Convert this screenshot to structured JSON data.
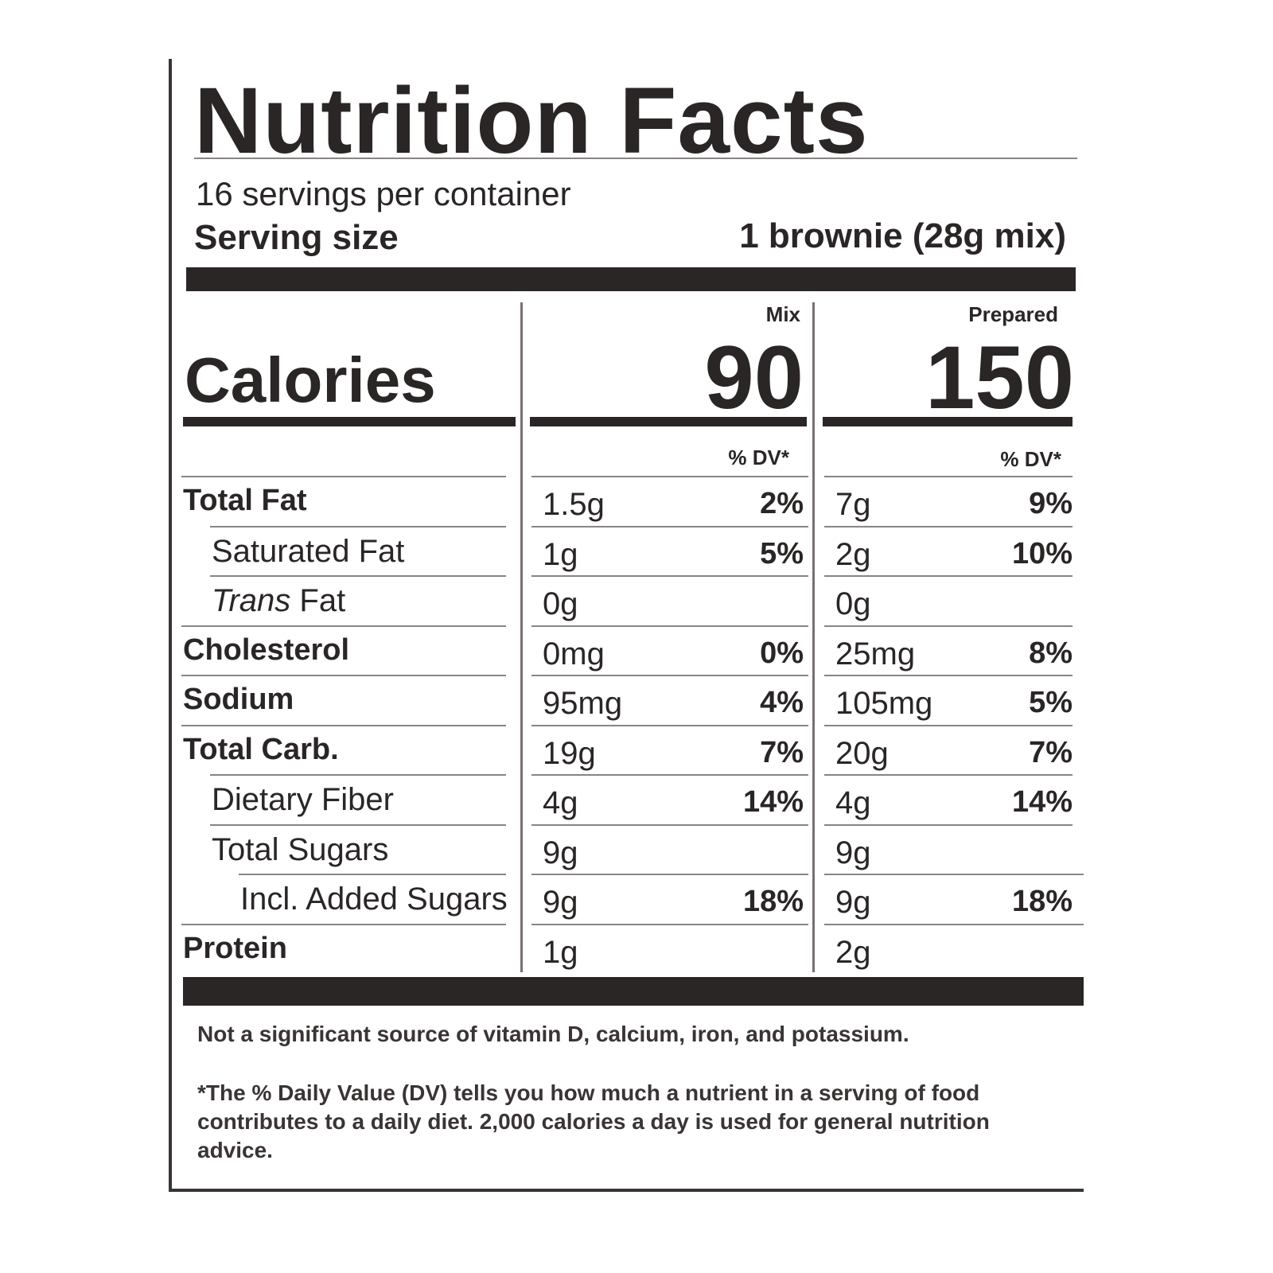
{
  "title": "Nutrition Facts",
  "servings": "16 servings per container",
  "serving_size": {
    "label": "Serving size",
    "value": "1 brownie (28g mix)"
  },
  "calories": {
    "label": "Calories",
    "columns": [
      {
        "name": "Mix",
        "value": 90
      },
      {
        "name": "Prepared",
        "value": 150
      }
    ]
  },
  "dv_header": [
    "% DV*",
    "% DV*"
  ],
  "rows": [
    {
      "name": "Total Fat",
      "mix": [
        "1.5g",
        "2%"
      ],
      "prepared": [
        "7g",
        "9%"
      ]
    },
    {
      "name": "Saturated Fat",
      "mix": [
        "1g",
        "5%"
      ],
      "prepared": [
        "2g",
        "10%"
      ]
    },
    {
      "name_italic": "Trans",
      "name": "Fat",
      "mix": [
        "0g"
      ],
      "prepared": [
        "0g"
      ]
    },
    {
      "name": "Cholesterol",
      "mix": [
        "0mg",
        "0%"
      ],
      "prepared": [
        "25mg",
        "8%"
      ]
    },
    {
      "name": "Sodium",
      "mix": [
        "95mg",
        "4%"
      ],
      "prepared": [
        "105mg",
        "5%"
      ]
    },
    {
      "name": "Total Carb.",
      "mix": [
        "19g",
        "7%"
      ],
      "prepared": [
        "20g",
        "7%"
      ]
    },
    {
      "name": "Dietary Fiber",
      "mix": [
        "4g",
        "14%"
      ],
      "prepared": [
        "4g",
        "14%"
      ]
    },
    {
      "name": "Total Sugars",
      "mix": [
        "9g"
      ],
      "prepared": [
        "9g"
      ]
    },
    {
      "name": "Incl. Added Sugars",
      "mix": [
        "9g",
        "18%"
      ],
      "prepared": [
        "9g",
        "18%"
      ]
    },
    {
      "name": "Protein",
      "mix": [
        "1g"
      ],
      "prepared": [
        "2g"
      ]
    }
  ],
  "footnote_1": "Not a significant source of vitamin D, calcium, iron, and potassium.",
  "footnote_2": "*The % Daily Value (DV) tells you how much a nutrient in a serving of food contributes to a daily diet. 2,000 calories a day is used for general nutrition advice."
}
